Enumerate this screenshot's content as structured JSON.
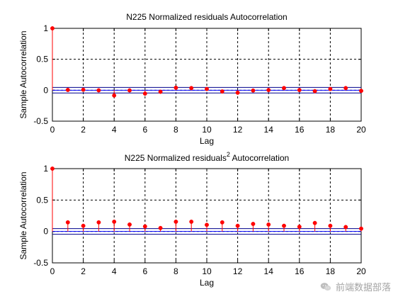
{
  "chart_data": [
    {
      "type": "stem",
      "title": "N225 Normalized residuals Autocorrelation",
      "title_superscript": "",
      "title_suffix": "",
      "xlabel": "Lag",
      "ylabel": "Sample Autocorrelation",
      "xlim": [
        0,
        20
      ],
      "ylim": [
        -0.5,
        1
      ],
      "xticks": [
        0,
        2,
        4,
        6,
        8,
        10,
        12,
        14,
        16,
        18,
        20
      ],
      "yticks": [
        -0.5,
        0,
        0.5,
        1
      ],
      "ytick_labels": [
        "-0.5",
        "0",
        "0.5",
        "1"
      ],
      "grid": true,
      "stem_color": "#ff0000",
      "bound_color": "#00008b",
      "zero_line_color": "#0000ff",
      "confidence_bounds": [
        0.045,
        -0.045
      ],
      "x": [
        0,
        1,
        2,
        3,
        4,
        5,
        6,
        7,
        8,
        9,
        10,
        11,
        12,
        13,
        14,
        15,
        16,
        17,
        18,
        19,
        20
      ],
      "values": [
        1.0,
        0.005,
        0.008,
        -0.002,
        -0.085,
        -0.003,
        -0.055,
        -0.025,
        0.04,
        0.035,
        0.02,
        -0.02,
        -0.04,
        -0.005,
        0.003,
        0.035,
        0.003,
        -0.015,
        0.02,
        0.035,
        -0.01
      ]
    },
    {
      "type": "stem",
      "title": "N225 Normalized residuals",
      "title_superscript": "2",
      "title_suffix": " Autocorrelation",
      "xlabel": "Lag",
      "ylabel": "Sample Autocorrelation",
      "xlim": [
        0,
        20
      ],
      "ylim": [
        -0.5,
        1
      ],
      "xticks": [
        0,
        2,
        4,
        6,
        8,
        10,
        12,
        14,
        16,
        18,
        20
      ],
      "yticks": [
        -0.5,
        0,
        0.5,
        1
      ],
      "ytick_labels": [
        "-0.5",
        "0",
        "0.5",
        "1"
      ],
      "grid": true,
      "stem_color": "#ff0000",
      "bound_color": "#00008b",
      "zero_line_color": "#0000ff",
      "confidence_bounds": [
        0.045,
        -0.045
      ],
      "x": [
        0,
        1,
        2,
        3,
        4,
        5,
        6,
        7,
        8,
        9,
        10,
        11,
        12,
        13,
        14,
        15,
        16,
        17,
        18,
        19,
        20
      ],
      "values": [
        1.0,
        0.145,
        0.09,
        0.145,
        0.155,
        0.11,
        0.08,
        0.055,
        0.155,
        0.155,
        0.105,
        0.145,
        0.09,
        0.12,
        0.11,
        0.09,
        0.075,
        0.135,
        0.09,
        0.07,
        0.045
      ]
    }
  ],
  "watermark": {
    "text": "前端数据部落",
    "icon": "wechat-icon"
  }
}
